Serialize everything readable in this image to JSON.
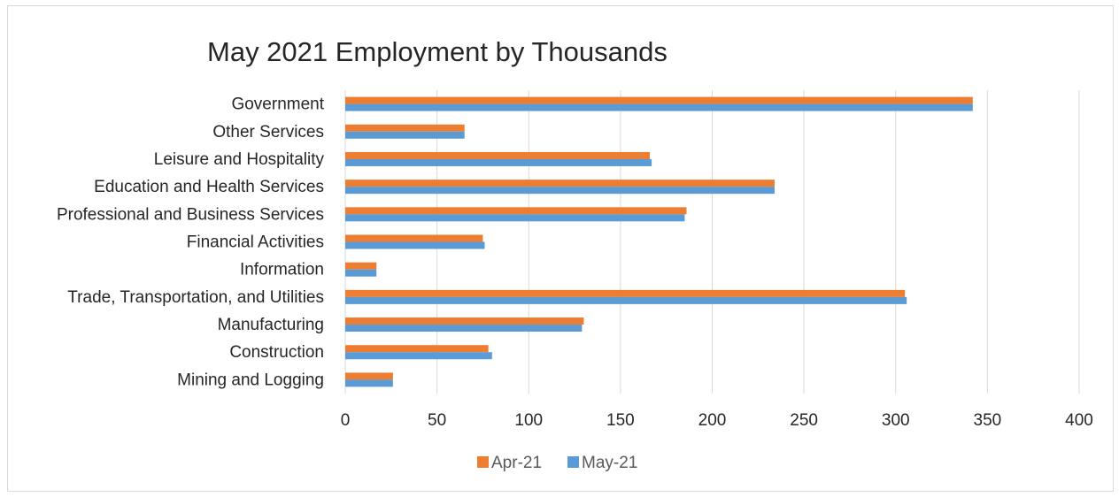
{
  "chart_data": {
    "type": "bar",
    "orientation": "horizontal",
    "title": "May 2021 Employment by Thousands",
    "xlabel": "",
    "ylabel": "",
    "xlim": [
      0,
      400
    ],
    "x_ticks": [
      0,
      50,
      100,
      150,
      200,
      250,
      300,
      350,
      400
    ],
    "grid": "vertical",
    "legend_position": "bottom",
    "categories": [
      "Government",
      "Other Services",
      "Leisure and Hospitality",
      "Education and Health Services",
      "Professional and Business Services",
      "Financial Activities",
      "Information",
      "Trade, Transportation, and Utilities",
      "Manufacturing",
      "Construction",
      "Mining and Logging"
    ],
    "series": [
      {
        "name": "Apr-21",
        "color": "#ED7D31",
        "values": [
          342,
          65,
          166,
          234,
          186,
          75,
          17,
          305,
          130,
          78,
          26
        ]
      },
      {
        "name": "May-21",
        "color": "#5B9BD5",
        "values": [
          342,
          65,
          167,
          234,
          185,
          76,
          17,
          306,
          129,
          80,
          26
        ]
      }
    ]
  }
}
